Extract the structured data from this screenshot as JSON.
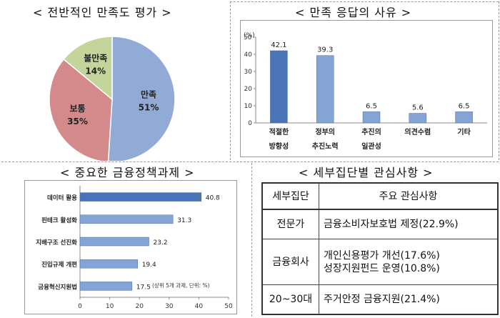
{
  "pie_panel": {
    "title": "< 전반적인 만족도 평가 >"
  },
  "reason_panel": {
    "title": "< 만족 응답의 사유 >"
  },
  "task_panel": {
    "title": "< 중요한 금융정책과제 >"
  },
  "group_panel": {
    "title": "< 세부집단별 관심사항 >",
    "headers": [
      "세부집단",
      "주요 관심사항"
    ],
    "rows": [
      {
        "group": "전문가",
        "items": [
          "금융소비자보호법 제정(22.9%)"
        ]
      },
      {
        "group": "금융회사",
        "items": [
          "개인신용평가 개선(17.6%)",
          "성장지원펀드 운영(10.8%)"
        ]
      },
      {
        "group": "20~30대",
        "items": [
          "주거안정 금융지원(21.4%)"
        ]
      }
    ]
  },
  "chart_data": [
    {
      "type": "pie",
      "title": "< 전반적인 만족도 평가 >",
      "categories": [
        "만족",
        "보통",
        "불만족"
      ],
      "values": [
        51,
        35,
        14
      ],
      "value_labels": [
        "51%",
        "35%",
        "14%"
      ],
      "colors": [
        "#92abd6",
        "#d48a8a",
        "#c3d59b"
      ]
    },
    {
      "type": "bar",
      "title": "< 만족 응답의 사유 >",
      "categories": [
        [
          "적절한",
          "방향성"
        ],
        [
          "정부의",
          "추진노력"
        ],
        [
          "추진의",
          "일관성"
        ],
        [
          "의견수렴"
        ],
        [
          "기타"
        ]
      ],
      "values": [
        42.1,
        39.3,
        6.5,
        5.6,
        6.5
      ],
      "value_labels": [
        "42.1",
        "39.3",
        "6.5",
        "5.6",
        "6.5"
      ],
      "ylabel": "(%)",
      "ylim": [
        0,
        50
      ],
      "yticks": [
        0,
        10,
        20,
        30,
        40,
        50
      ],
      "highlight_color": "#4a74b8",
      "bar_color": "#84a4d6"
    },
    {
      "type": "bar",
      "orientation": "horizontal",
      "title": "< 중요한 금융정책과제 >",
      "categories": [
        "데이터 활용",
        "핀테크 활성화",
        "지배구조 선진화",
        "진입규제 개편",
        "금융혁신지원법"
      ],
      "values": [
        40.8,
        31.3,
        23.2,
        19.4,
        17.5
      ],
      "value_labels": [
        "40.8",
        "31.3",
        "23.2",
        "19.4",
        "17.5"
      ],
      "xlim": [
        0,
        50
      ],
      "xticks": [
        0,
        10,
        20,
        30,
        40,
        50
      ],
      "note": "(상위 5개 과제, 단위: %)",
      "highlight_color": "#4a74b8",
      "bar_color": "#84a4d6"
    }
  ]
}
